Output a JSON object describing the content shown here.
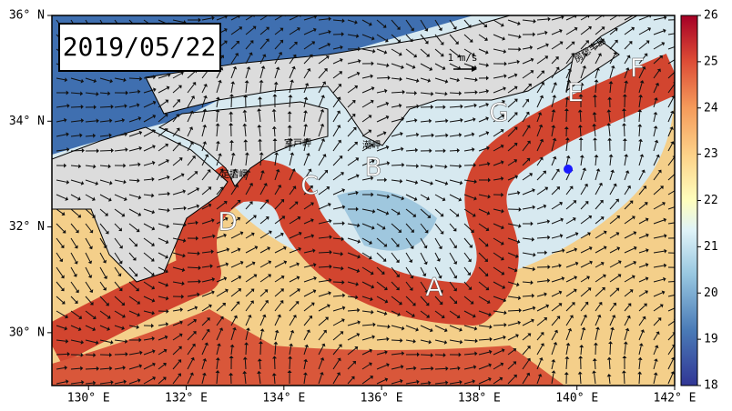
{
  "map": {
    "date": "2019/05/22",
    "xlim": [
      129.25,
      142
    ],
    "ylim": [
      29,
      36
    ],
    "xticks": [
      {
        "value": 130,
        "label": "130° E"
      },
      {
        "value": 132,
        "label": "132° E"
      },
      {
        "value": 134,
        "label": "134° E"
      },
      {
        "value": 136,
        "label": "136° E"
      },
      {
        "value": 138,
        "label": "138° E"
      },
      {
        "value": 140,
        "label": "140° E"
      },
      {
        "value": 142,
        "label": "142° E"
      }
    ],
    "yticks": [
      {
        "value": 30,
        "label": "30° N"
      },
      {
        "value": 32,
        "label": "32° N"
      },
      {
        "value": 34,
        "label": "34° N"
      },
      {
        "value": 36,
        "label": "36° N"
      }
    ],
    "colorbar": {
      "clim": [
        18,
        26
      ],
      "ticks": [
        18,
        19,
        20,
        21,
        22,
        23,
        24,
        25,
        26
      ]
    },
    "scale_label": "1 m/s",
    "annotations": [
      "A",
      "B",
      "C",
      "D",
      "E",
      "F",
      "G"
    ],
    "place_names": [
      "室戸岬",
      "潮岬",
      "足摺岬",
      "房総半島"
    ]
  }
}
